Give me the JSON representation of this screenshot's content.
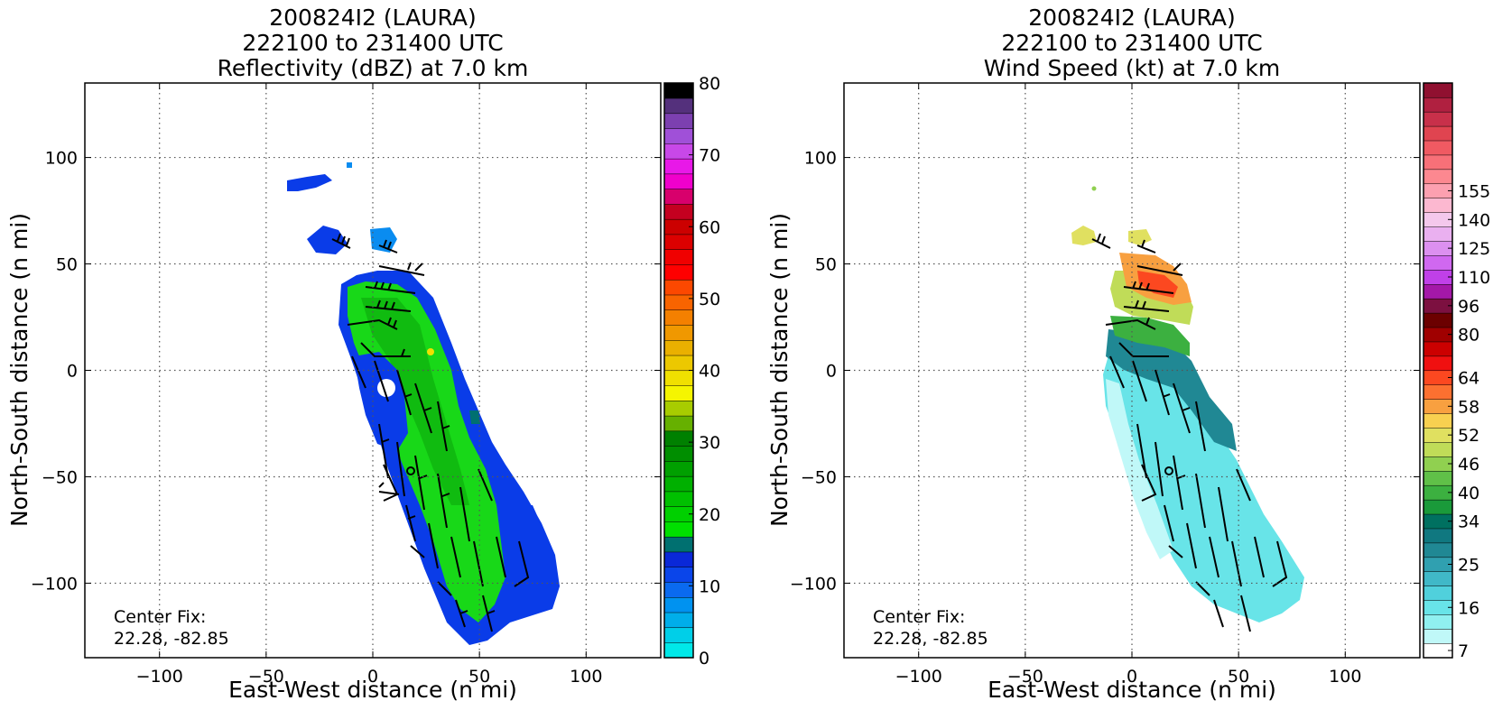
{
  "chart_data": [
    {
      "type": "heatmap",
      "title_lines": [
        "200824I2 (LAURA)",
        "222100 to 231400 UTC",
        "Reflectivity (dBZ) at 7.0 km"
      ],
      "xlabel": "East-West distance (n mi)",
      "ylabel": "North-South distance (n mi)",
      "xlim": [
        -135,
        135
      ],
      "ylim": [
        -135,
        135
      ],
      "xticks": [
        -100,
        -50,
        0,
        50,
        100
      ],
      "yticks": [
        -100,
        -50,
        0,
        50,
        100
      ],
      "xtick_labels": [
        "−100",
        "−50",
        "0",
        "50",
        "100"
      ],
      "ytick_labels": [
        "−100",
        "−50",
        "0",
        "50",
        "100"
      ],
      "grid": true,
      "annotation_lines": [
        "Center Fix:",
        "22.28, -82.85"
      ],
      "colorbar": {
        "min": 0,
        "max": 80,
        "colors": [
          "#00e8e8",
          "#00cfe8",
          "#00aeea",
          "#0092f0",
          "#0a6af0",
          "#0a45ea",
          "#0a28d8",
          "#007070",
          "#00e000",
          "#00d000",
          "#00c000",
          "#00b000",
          "#00a000",
          "#008e00",
          "#008000",
          "#66b000",
          "#a8cc00",
          "#f5f500",
          "#f0e000",
          "#ecc800",
          "#eab000",
          "#f09800",
          "#f48000",
          "#f86400",
          "#fc4800",
          "#ff0000",
          "#f00000",
          "#dc0000",
          "#cc0000",
          "#c40020",
          "#d8006c",
          "#f000cc",
          "#e818e8",
          "#c848e8",
          "#a050d8",
          "#7c40b0",
          "#54307c",
          "#000000"
        ],
        "tick_values": [
          0,
          10,
          20,
          30,
          40,
          50,
          60,
          70,
          80
        ],
        "tick_labels": [
          "0",
          "10",
          "20",
          "30",
          "40",
          "50",
          "60",
          "70",
          "80"
        ]
      }
    },
    {
      "type": "heatmap",
      "title_lines": [
        "200824I2 (LAURA)",
        "222100 to 231400 UTC",
        "Wind Speed (kt) at 7.0 km"
      ],
      "xlabel": "East-West distance (n mi)",
      "ylabel": "North-South distance (n mi)",
      "xlim": [
        -135,
        135
      ],
      "ylim": [
        -135,
        135
      ],
      "xticks": [
        -100,
        -50,
        0,
        50,
        100
      ],
      "yticks": [
        -100,
        -50,
        0,
        50,
        100
      ],
      "xtick_labels": [
        "−100",
        "−50",
        "0",
        "50",
        "100"
      ],
      "ytick_labels": [
        "−100",
        "−50",
        "0",
        "50",
        "100"
      ],
      "grid": true,
      "annotation_lines": [
        "Center Fix:",
        "22.28, -82.85"
      ],
      "colorbar": {
        "colors": [
          "#ffffff",
          "#c0f8f8",
          "#90f0f0",
          "#68e4e8",
          "#50d0dc",
          "#40b8c8",
          "#30a0b0",
          "#208894",
          "#107880",
          "#007060",
          "#1a9a3a",
          "#3cb040",
          "#60c048",
          "#90d050",
          "#c0dc58",
          "#e0e060",
          "#f8d050",
          "#f8a040",
          "#fc7030",
          "#fc4820",
          "#f01010",
          "#cc0000",
          "#a00000",
          "#6c0000",
          "#7c1040",
          "#a418a8",
          "#c040e8",
          "#d068f0",
          "#dc90f0",
          "#eab0f0",
          "#f4c8ec",
          "#fcb8d0",
          "#fca0b0",
          "#fc8890",
          "#f87078",
          "#f05a62",
          "#e04450",
          "#c8304a",
          "#b02040",
          "#901030"
        ],
        "tick_labels": [
          "7",
          "16",
          "25",
          "34",
          "40",
          "46",
          "52",
          "58",
          "64",
          "80",
          "96",
          "110",
          "125",
          "140",
          "155"
        ],
        "tick_indices": [
          0,
          3,
          6,
          9,
          11,
          13,
          15,
          17,
          19,
          22,
          24,
          26,
          28,
          30,
          32
        ]
      }
    }
  ]
}
